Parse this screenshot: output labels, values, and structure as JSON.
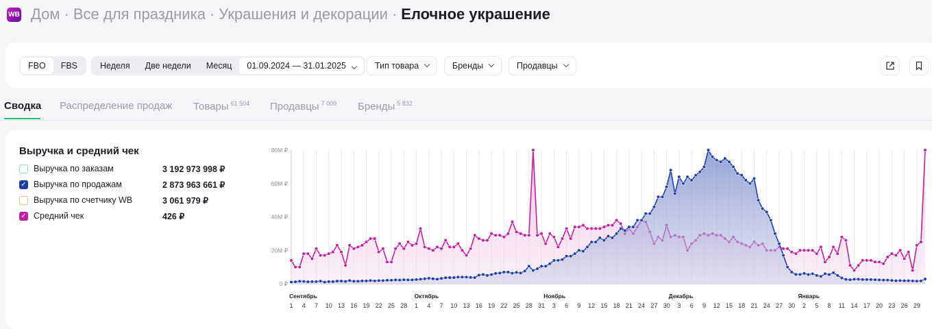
{
  "breadcrumb": {
    "logo": "WB",
    "items": [
      "Дом",
      "Все для праздника",
      "Украшения и декорации"
    ],
    "current": "Елочное украшение",
    "separator": "·"
  },
  "filters": {
    "fulfillment": [
      "FBO",
      "FBS"
    ],
    "fulfillment_selected": "FBO",
    "periods": [
      "Неделя",
      "Две недели",
      "Месяц"
    ],
    "date_range": "01.09.2024 — 31.01.2025",
    "dropdowns": [
      "Тип товара",
      "Бренды",
      "Продавцы"
    ],
    "icons": [
      "export-icon",
      "bookmark-icon"
    ]
  },
  "tabs": [
    {
      "label": "Сводка",
      "count": "",
      "active": true
    },
    {
      "label": "Распределение продаж",
      "count": ""
    },
    {
      "label": "Товары",
      "count": "61 504"
    },
    {
      "label": "Продавцы",
      "count": "7 009"
    },
    {
      "label": "Бренды",
      "count": "5 832"
    }
  ],
  "panel": {
    "title": "Выручка и средний чек",
    "legend": [
      {
        "label": "Выручка по заказам",
        "value": "3 192 973 998 ₽",
        "checked": false,
        "color": "#7fd6b8"
      },
      {
        "label": "Выручка по продажам",
        "value": "2 873 963 661 ₽",
        "checked": true,
        "color": "#1f3fa8"
      },
      {
        "label": "Выручка по счетчику WB",
        "value": "3 061 979 ₽",
        "checked": false,
        "color": "#f5b08f"
      },
      {
        "label": "Средний чек",
        "value": "426 ₽",
        "checked": true,
        "color": "#c0209f"
      }
    ]
  },
  "chart_data": {
    "type": "area",
    "y_ticks": [
      "0 ₽",
      "20M ₽",
      "40M ₽",
      "60M ₽",
      "80M ₽"
    ],
    "ylim": [
      0,
      80
    ],
    "y_unit": "M ₽",
    "grid": "vertical",
    "months": [
      {
        "label": "Сентябрь",
        "day_index": 0
      },
      {
        "label": "Октябрь",
        "day_index": 30
      },
      {
        "label": "Ноябрь",
        "day_index": 61
      },
      {
        "label": "Декабрь",
        "day_index": 91
      },
      {
        "label": "Январь",
        "day_index": 122
      }
    ],
    "x_tick_labels": [
      "1",
      "4",
      "7",
      "10",
      "13",
      "16",
      "19",
      "22",
      "25",
      "28",
      "1",
      "4",
      "7",
      "10",
      "13",
      "16",
      "19",
      "22",
      "25",
      "28",
      "31",
      "3",
      "6",
      "9",
      "12",
      "15",
      "18",
      "21",
      "24",
      "27",
      "30",
      "3",
      "6",
      "9",
      "12",
      "15",
      "18",
      "21",
      "24",
      "27",
      "30",
      "2",
      "5",
      "8",
      "11",
      "14",
      "17",
      "20",
      "23",
      "26",
      "29"
    ],
    "x_start": "2024-09-01",
    "x_end": "2025-01-31",
    "series": [
      {
        "name": "Выручка по продажам",
        "color": "#1f3fa8",
        "axis": "M ₽",
        "values": [
          1,
          1.2,
          1.5,
          1.4,
          1.2,
          1.3,
          1.3,
          1.6,
          1,
          1.3,
          1.3,
          1.6,
          1.6,
          1.4,
          1.9,
          1.5,
          1.5,
          1.7,
          1.7,
          1.9,
          1.7,
          1.9,
          1.9,
          2.1,
          2.1,
          2.3,
          2.2,
          2.4,
          2.3,
          2.3,
          2.5,
          2.7,
          3,
          3.3,
          3,
          2.7,
          3.2,
          3.6,
          3.7,
          3.7,
          4,
          4,
          4,
          3.8,
          3.7,
          5.2,
          5.6,
          5,
          5.5,
          6.2,
          6.4,
          7,
          7,
          6.3,
          6.8,
          6.4,
          7.6,
          10.5,
          8,
          9,
          10.5,
          10.5,
          12,
          14,
          14,
          14.5,
          16.5,
          16.5,
          18,
          20,
          19.5,
          22,
          25,
          25,
          27.5,
          26,
          28.5,
          27.5,
          30,
          33,
          31.8,
          34,
          34,
          38,
          38,
          42,
          42,
          46,
          52,
          52,
          58,
          68,
          54,
          64,
          60,
          64,
          62,
          65,
          67,
          70,
          80,
          76,
          74,
          73,
          75,
          73,
          70,
          66,
          65,
          62,
          60,
          63,
          50,
          45,
          43,
          38,
          30,
          24,
          17,
          10,
          7,
          5.6,
          5.6,
          6.2,
          5.5,
          6,
          5,
          4.4,
          6,
          5.5,
          6.6,
          5,
          3.5,
          2.6,
          2.4,
          2.7,
          2.7,
          2.5,
          2.5,
          2.5,
          2.4,
          2.3,
          2.2,
          2.2,
          2,
          1.8,
          1.9,
          1.8,
          1.8,
          1.7,
          1.6,
          1.7,
          2.8
        ]
      },
      {
        "name": "Средний чек",
        "color": "#c0209f",
        "axis": "₽",
        "values": [
          245,
          175,
          175,
          315,
          315,
          263,
          368,
          298,
          298,
          315,
          333,
          403,
          333,
          193,
          403,
          368,
          385,
          403,
          438,
          473,
          473,
          333,
          368,
          228,
          228,
          368,
          420,
          368,
          438,
          403,
          420,
          578,
          385,
          368,
          350,
          385,
          368,
          455,
          385,
          385,
          420,
          350,
          298,
          368,
          508,
          473,
          455,
          455,
          525,
          508,
          508,
          490,
          525,
          648,
          543,
          525,
          508,
          508,
          1400,
          508,
          525,
          420,
          525,
          490,
          385,
          473,
          578,
          473,
          595,
          595,
          613,
          578,
          578,
          578,
          578,
          595,
          613,
          613,
          665,
          630,
          525,
          578,
          525,
          595,
          665,
          648,
          543,
          420,
          490,
          455,
          613,
          490,
          508,
          490,
          490,
          350,
          420,
          455,
          508,
          525,
          508,
          525,
          508,
          508,
          473,
          438,
          490,
          438,
          420,
          403,
          385,
          438,
          403,
          420,
          350,
          350,
          350,
          385,
          368,
          368,
          333,
          315,
          350,
          350,
          350,
          350,
          315,
          385,
          228,
          280,
          385,
          315,
          490,
          455,
          193,
          140,
          193,
          245,
          245,
          245,
          228,
          228,
          210,
          280,
          315,
          298,
          350,
          263,
          333,
          140,
          403,
          438,
          1400
        ]
      }
    ]
  }
}
